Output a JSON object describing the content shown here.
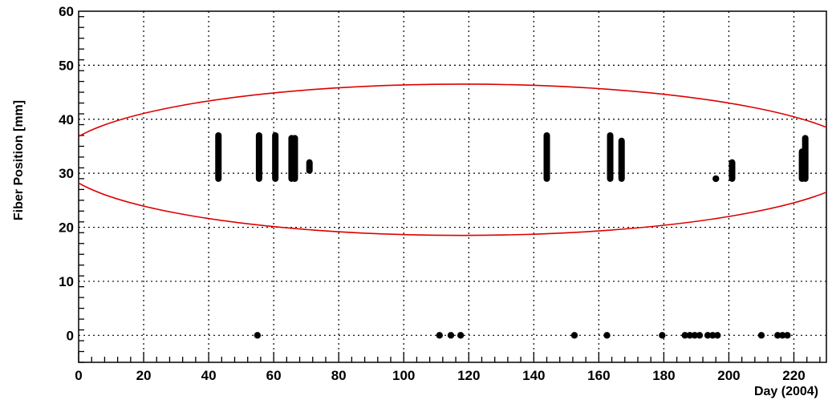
{
  "chart_data": {
    "type": "scatter",
    "title": "",
    "xlabel": "Day (2004)",
    "ylabel": "Fiber Position [mm]",
    "xlim": [
      0,
      230
    ],
    "ylim": [
      -5,
      60
    ],
    "x_ticks": [
      0,
      20,
      40,
      60,
      80,
      100,
      120,
      140,
      160,
      180,
      200,
      220
    ],
    "y_ticks": [
      0,
      10,
      20,
      30,
      40,
      50,
      60
    ],
    "grid": true,
    "marker_color": "#000000",
    "clusters": [
      {
        "x": 43,
        "y_min": 29,
        "y_max": 37
      },
      {
        "x": 55.5,
        "y_min": 29,
        "y_max": 37
      },
      {
        "x": 60.5,
        "y_min": 29,
        "y_max": 37
      },
      {
        "x": 65.5,
        "y_min": 29,
        "y_max": 36.5
      },
      {
        "x": 66.5,
        "y_min": 29,
        "y_max": 36.5
      },
      {
        "x": 71,
        "y_min": 30.5,
        "y_max": 32
      },
      {
        "x": 144,
        "y_min": 29,
        "y_max": 37
      },
      {
        "x": 163.5,
        "y_min": 29,
        "y_max": 37
      },
      {
        "x": 167,
        "y_min": 29,
        "y_max": 36
      },
      {
        "x": 201,
        "y_min": 29,
        "y_max": 32
      },
      {
        "x": 222.5,
        "y_min": 29,
        "y_max": 34
      },
      {
        "x": 223.5,
        "y_min": 29,
        "y_max": 36.5
      }
    ],
    "points": [
      {
        "x": 196,
        "y": 29
      },
      {
        "x": 55,
        "y": 0
      },
      {
        "x": 111,
        "y": 0
      },
      {
        "x": 114.5,
        "y": 0
      },
      {
        "x": 117.5,
        "y": 0
      },
      {
        "x": 152.5,
        "y": 0
      },
      {
        "x": 162.5,
        "y": 0
      },
      {
        "x": 179.5,
        "y": 0
      },
      {
        "x": 186.5,
        "y": 0
      },
      {
        "x": 188,
        "y": 0
      },
      {
        "x": 189.5,
        "y": 0
      },
      {
        "x": 191,
        "y": 0
      },
      {
        "x": 193.5,
        "y": 0
      },
      {
        "x": 195,
        "y": 0
      },
      {
        "x": 196.5,
        "y": 0
      },
      {
        "x": 210,
        "y": 0
      },
      {
        "x": 215,
        "y": 0
      },
      {
        "x": 216.5,
        "y": 0
      },
      {
        "x": 218,
        "y": 0
      }
    ],
    "annotation": {
      "shape": "ellipse",
      "color": "#dd0000",
      "center_x": 118,
      "center_y": 32.5,
      "rx": 124,
      "ry": 14
    }
  }
}
